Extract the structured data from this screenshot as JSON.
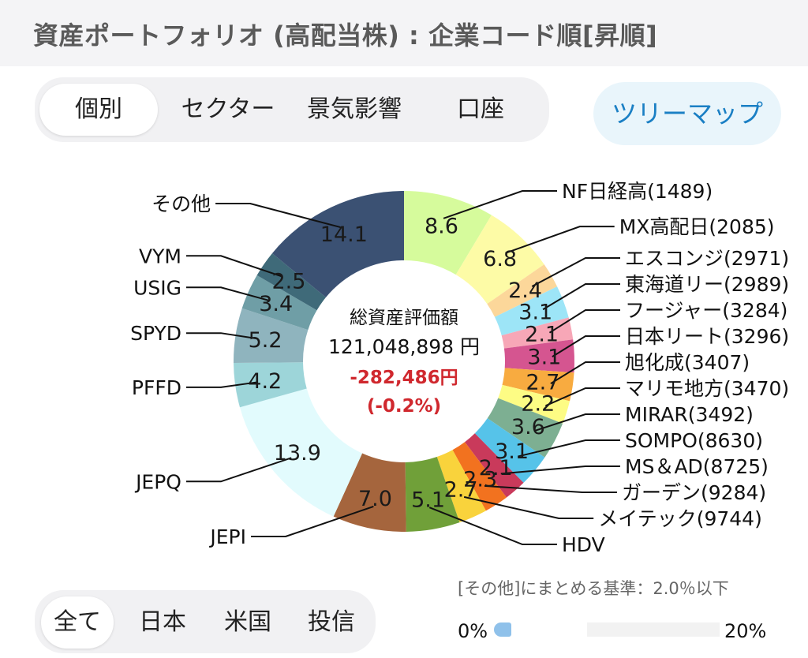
{
  "header": {
    "title": "資産ポートフォリオ (高配当株) : 企業コード順[昇順]"
  },
  "view_tabs": [
    {
      "label": "個別",
      "active": true
    },
    {
      "label": "セクター",
      "active": false
    },
    {
      "label": "景気影響",
      "active": false
    },
    {
      "label": "口座",
      "active": false
    }
  ],
  "treemap_button": "ツリーマップ",
  "center": {
    "label": "総資産評価額",
    "total": "121,048,898 円",
    "change": "-282,486円",
    "change_pct": "(-0.2%)",
    "change_color": "#d0282e"
  },
  "chart_data": {
    "type": "pie",
    "unit": "%",
    "slices": [
      {
        "name": "NF日経高(1489)",
        "value": 8.6,
        "color": "#d6fb9c"
      },
      {
        "name": "MX高配日(2085)",
        "value": 6.8,
        "color": "#fdfba6"
      },
      {
        "name": "エスコンジ(2971)",
        "value": 2.4,
        "color": "#fcd79a"
      },
      {
        "name": "東海道リー(2989)",
        "value": 3.1,
        "color": "#9de5f7"
      },
      {
        "name": "フージャー(3284)",
        "value": 2.1,
        "color": "#f7a7b7"
      },
      {
        "name": "日本リート(3296)",
        "value": 3.1,
        "color": "#d55590"
      },
      {
        "name": "旭化成(3407)",
        "value": 2.7,
        "color": "#f8ab40"
      },
      {
        "name": "マリモ地方(3470)",
        "value": 2.2,
        "color": "#fdfc84"
      },
      {
        "name": "MIRAR(3492)",
        "value": 3.6,
        "color": "#7daf92"
      },
      {
        "name": "SOMPO(8630)",
        "value": 3.1,
        "color": "#56c3e9"
      },
      {
        "name": "MS＆AD(8725)",
        "value": 2.1,
        "color": "#c93a5b"
      },
      {
        "name": "ガーデン(9284)",
        "value": 2.3,
        "color": "#f2721f"
      },
      {
        "name": "メイテック(9744)",
        "value": 2.7,
        "color": "#f9d33c"
      },
      {
        "name": "HDV",
        "value": 5.1,
        "color": "#70a039"
      },
      {
        "name": "JEPI",
        "value": 7.0,
        "color": "#a5653d"
      },
      {
        "name": "JEPQ",
        "value": 13.9,
        "color": "#e2fbfd"
      },
      {
        "name": "PFFD",
        "value": 4.2,
        "color": "#9dd5d9"
      },
      {
        "name": "SPYD",
        "value": 5.2,
        "color": "#8fb4be"
      },
      {
        "name": "USIG",
        "value": 3.4,
        "color": "#6f9ea6"
      },
      {
        "name": "VYM",
        "value": 2.5,
        "color": "#3f6a79"
      },
      {
        "name": "その他",
        "value": 14.1,
        "color": "#3b5173"
      }
    ]
  },
  "market_tabs": [
    {
      "label": "全て",
      "active": true
    },
    {
      "label": "日本",
      "active": false
    },
    {
      "label": "米国",
      "active": false
    },
    {
      "label": "投信",
      "active": false
    }
  ],
  "threshold": {
    "text": "[その他]にまとめる基準：2.0％以下",
    "min_label": "0%",
    "max_label": "20%",
    "value_pct": 2.0
  }
}
